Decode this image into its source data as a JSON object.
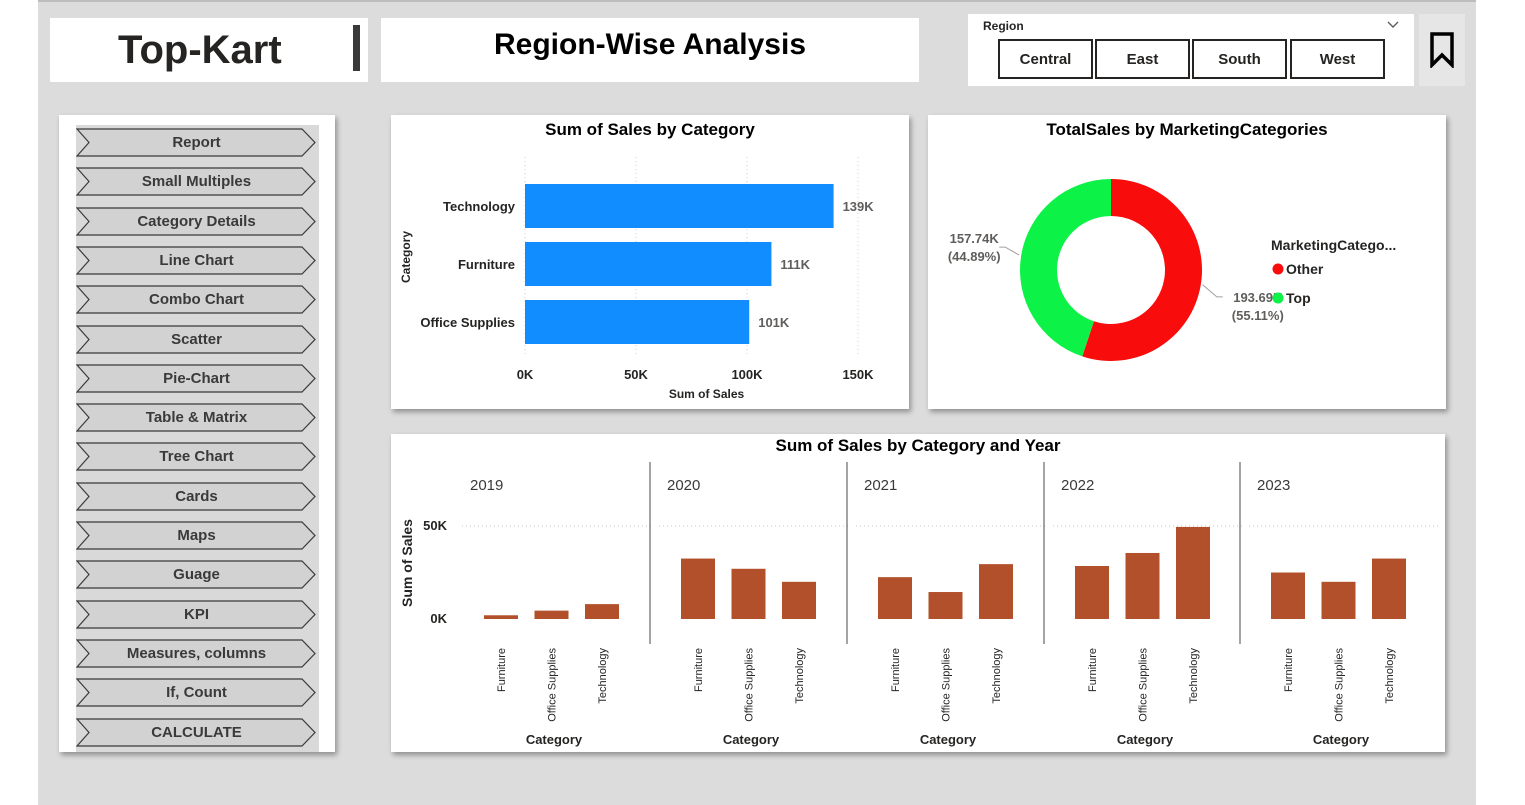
{
  "header": {
    "brand": "Top-Kart",
    "page_title": "Region-Wise Analysis"
  },
  "slicer": {
    "title": "Region",
    "options": [
      "Central",
      "East",
      "South",
      "West"
    ]
  },
  "icons": {
    "bookmark": "bookmark-icon",
    "dropdown": "chevron-down-icon"
  },
  "nav": {
    "items": [
      "Report",
      "Small Multiples",
      "Category Details",
      "Line Chart",
      "Combo Chart",
      "Scatter",
      "Pie-Chart",
      "Table & Matrix",
      "Tree Chart",
      "Cards",
      "Maps",
      "Guage",
      "KPI",
      "Measures, columns",
      "If, Count",
      "CALCULATE"
    ]
  },
  "chart_data": [
    {
      "type": "bar",
      "orientation": "horizontal",
      "title": "Sum of Sales by Category",
      "xlabel": "Sum of Sales",
      "ylabel": "Category",
      "categories": [
        "Technology",
        "Furniture",
        "Office Supplies"
      ],
      "values": [
        139000,
        111000,
        101000
      ],
      "data_labels": [
        "139K",
        "111K",
        "101K"
      ],
      "xlim": [
        0,
        150000
      ],
      "xticks": [
        "0K",
        "50K",
        "100K",
        "150K"
      ],
      "color": "#118DFF"
    },
    {
      "type": "pie",
      "variant": "donut",
      "title": "TotalSales by MarketingCategories",
      "legend_title": "MarketingCatego...",
      "legend_position": "right",
      "slices": [
        {
          "name": "Other",
          "value": 193690,
          "label": "193.69K",
          "percent_label": "(55.11%)",
          "color": "#F80C0C"
        },
        {
          "name": "Top",
          "value": 157740,
          "label": "157.74K",
          "percent_label": "(44.89%)",
          "color": "#0CF247"
        }
      ]
    },
    {
      "type": "bar",
      "variant": "small-multiples",
      "title": "Sum of Sales by Category and Year",
      "xlabel": "Category",
      "ylabel": "Sum of Sales",
      "yticks": [
        "0K",
        "50K"
      ],
      "ylim": [
        0,
        50000
      ],
      "categories": [
        "Furniture",
        "Office Supplies",
        "Technology"
      ],
      "color": "#B1502B",
      "panels": [
        {
          "year": "2019",
          "values": [
            2000,
            4500,
            8000
          ]
        },
        {
          "year": "2020",
          "values": [
            32500,
            27000,
            20000
          ]
        },
        {
          "year": "2021",
          "values": [
            22500,
            14500,
            29500
          ]
        },
        {
          "year": "2022",
          "values": [
            28500,
            35500,
            49500
          ]
        },
        {
          "year": "2023",
          "values": [
            25000,
            20000,
            32500
          ]
        }
      ]
    }
  ]
}
